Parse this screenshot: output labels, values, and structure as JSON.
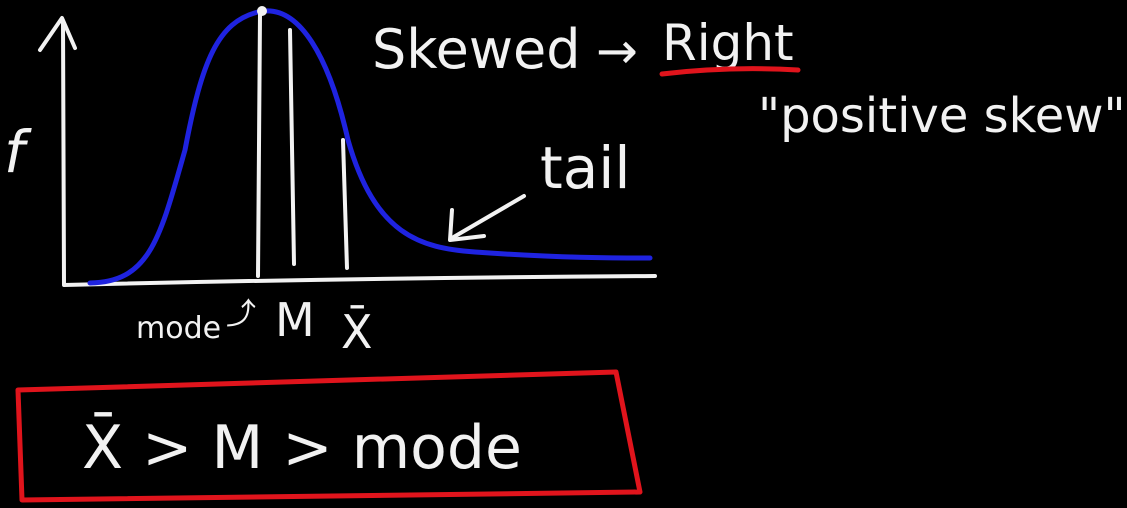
{
  "axis": {
    "y_label": "f"
  },
  "heading": {
    "skewed_word": "Skewed",
    "arrow_glyph": "→",
    "direction_word": "Right"
  },
  "subheading": {
    "text": "\"positive skew\""
  },
  "tail_note": {
    "text": "tail"
  },
  "markers": {
    "mode": "mode",
    "mode_arrow": "⤴",
    "median": "M",
    "mean": "X̄"
  },
  "inequality": {
    "text": "X̄ > M > mode"
  },
  "colors": {
    "background": "#000000",
    "chalk": "#f2f2f2",
    "curve": "#1f23e0",
    "underline": "#e0141c",
    "box": "#e0141c"
  }
}
